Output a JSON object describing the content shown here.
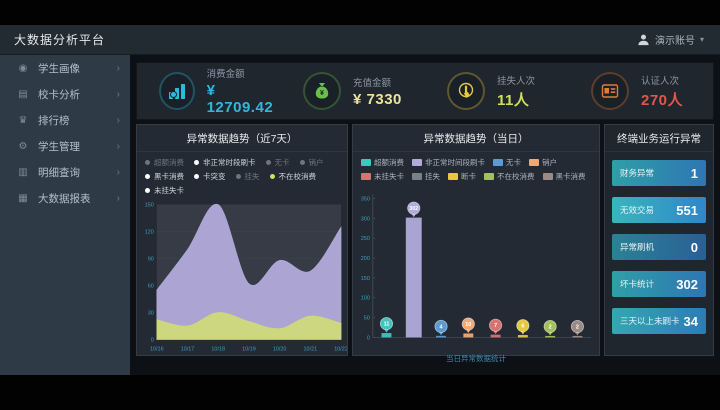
{
  "header": {
    "title": "大数据分析平台",
    "user": "演示账号",
    "caret": "▾"
  },
  "sidebar": {
    "items": [
      {
        "icon": "student-portrait-icon",
        "glyph": "◉",
        "label": "学生画像"
      },
      {
        "icon": "card-analysis-icon",
        "glyph": "▤",
        "label": "校卡分析"
      },
      {
        "icon": "ranking-icon",
        "glyph": "♛",
        "label": "排行榜"
      },
      {
        "icon": "student-manage-icon",
        "glyph": "⚙",
        "label": "学生管理"
      },
      {
        "icon": "detail-query-icon",
        "glyph": "▥",
        "label": "明细查询"
      },
      {
        "icon": "report-icon",
        "glyph": "▦",
        "label": "大数据报表"
      }
    ],
    "chevron": "›"
  },
  "kpis": [
    {
      "icon": "consume-amount-icon",
      "iconType": "chart-coins",
      "iconColor": "#2fb9dc",
      "label": "消费金额",
      "value": "¥ 12709.42",
      "valueColor": "#2fb9dc"
    },
    {
      "icon": "recharge-amount-icon",
      "iconType": "money-bag",
      "iconColor": "#6abf4b",
      "label": "充值金额",
      "value": "¥ 7330",
      "valueColor": "#efe29a"
    },
    {
      "icon": "loss-report-icon",
      "iconType": "touch-hand",
      "iconColor": "#e8c83e",
      "label": "挂失人次",
      "value": "11人",
      "valueColor": "#cfe05a"
    },
    {
      "icon": "auth-count-icon",
      "iconType": "id-card",
      "iconColor": "#e07b3a",
      "label": "认证人次",
      "value": "270人",
      "valueColor": "#e2574c"
    }
  ],
  "panel1": {
    "title": "异常数据趋势（近7天）",
    "legend": [
      {
        "label": "超额消费",
        "dot": "#6b7680",
        "dim": true
      },
      {
        "label": "非正常时段刷卡",
        "dot": "#ffffff",
        "dim": false
      },
      {
        "label": "无卡",
        "dot": "#6b7680",
        "dim": true
      },
      {
        "label": "销户",
        "dot": "#6b7680",
        "dim": true
      },
      {
        "label": "黑卡消费",
        "dot": "#ffffff",
        "dim": false
      },
      {
        "label": "卡突变",
        "dot": "#ffffff",
        "dim": false
      },
      {
        "label": "挂失",
        "dot": "#6b7680",
        "dim": true
      },
      {
        "label": "不在校消费",
        "dot": "#cfe05a",
        "dim": false
      },
      {
        "label": "未挂失卡",
        "dot": "#ffffff",
        "dim": false
      }
    ],
    "chart_data": {
      "type": "area",
      "x": [
        "10/16",
        "10/17",
        "10/18",
        "10/19",
        "10/20",
        "10/21",
        "10/22"
      ],
      "series": [
        {
          "name": "非正常时段刷卡",
          "color": "#b2abdc",
          "values": [
            55,
            100,
            150,
            62,
            88,
            76,
            125
          ]
        },
        {
          "name": "不在校消费",
          "color": "#cfd97a",
          "values": [
            22,
            15,
            30,
            20,
            12,
            26,
            18
          ]
        }
      ],
      "ylim": [
        0,
        150
      ],
      "yticks": [
        0,
        30,
        60,
        90,
        120,
        150
      ],
      "grid": true,
      "legend_position": "top"
    }
  },
  "panel2": {
    "title": "异常数据趋势（当日）",
    "legend": [
      {
        "label": "超额消费",
        "color": "#3ec6c0"
      },
      {
        "label": "非正常时间段刷卡",
        "color": "#b2abdc"
      },
      {
        "label": "无卡",
        "color": "#5b9bd5"
      },
      {
        "label": "销户",
        "color": "#f0a875"
      },
      {
        "label": "未挂失卡",
        "color": "#d9736f"
      },
      {
        "label": "挂失",
        "color": "#7a8288"
      },
      {
        "label": "断卡",
        "color": "#e8c83e"
      },
      {
        "label": "不在校消费",
        "color": "#a3c15a"
      },
      {
        "label": "黑卡消费",
        "color": "#9c8a85"
      }
    ],
    "caption": "当日异常数据统计",
    "chart_data": {
      "type": "bar",
      "categories": [
        "超额消费",
        "非正常时间段刷卡",
        "无卡",
        "销户",
        "未挂失卡",
        "断卡",
        "不在校消费",
        "黑卡消费"
      ],
      "values": [
        11,
        302,
        4,
        10,
        7,
        6,
        2,
        2
      ],
      "colors": [
        "#3ec6c0",
        "#b2abdc",
        "#5b9bd5",
        "#f0a875",
        "#d9736f",
        "#e8c83e",
        "#a3c15a",
        "#9c8a85"
      ],
      "ylim": [
        0,
        350
      ],
      "yticks": [
        0,
        50,
        100,
        150,
        200,
        250,
        300,
        350
      ],
      "grid": true,
      "legend_position": "top"
    }
  },
  "panel3": {
    "title": "终端业务运行异常",
    "rows": [
      {
        "label": "财务异常",
        "value": "1"
      },
      {
        "label": "无效交易",
        "value": "551"
      },
      {
        "label": "异常刷机",
        "value": "0"
      },
      {
        "label": "坏卡统计",
        "value": "302"
      },
      {
        "label": "三天以上未刷卡",
        "value": "34"
      }
    ]
  }
}
